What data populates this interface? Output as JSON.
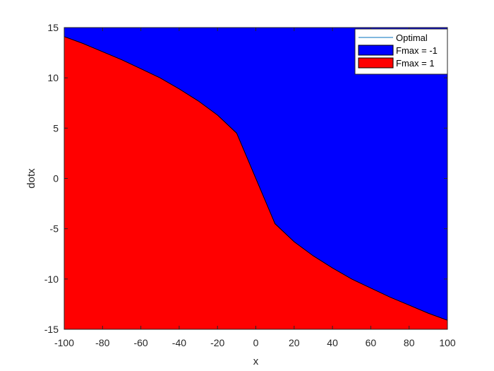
{
  "chart_data": {
    "type": "area",
    "xlabel": "x",
    "ylabel": "dotx",
    "xlim": [
      -100,
      100
    ],
    "ylim": [
      -15,
      15
    ],
    "xticks": [
      -100,
      -80,
      -60,
      -40,
      -20,
      0,
      20,
      40,
      60,
      80,
      100
    ],
    "yticks": [
      -15,
      -10,
      -5,
      0,
      5,
      10,
      15
    ],
    "grid": false,
    "legend_position": "top-right",
    "boundary": {
      "x": [
        -100,
        -90,
        -80,
        -70,
        -60,
        -50,
        -40,
        -30,
        -20,
        -10,
        10,
        20,
        30,
        40,
        50,
        60,
        70,
        80,
        90,
        100
      ],
      "y": [
        14.1,
        13.4,
        12.6,
        11.8,
        10.9,
        10.0,
        8.9,
        7.7,
        6.3,
        4.5,
        -4.5,
        -6.3,
        -7.7,
        -8.9,
        -10.0,
        -10.9,
        -11.8,
        -12.6,
        -13.4,
        -14.1
      ]
    },
    "series": [
      {
        "name": "Optimal",
        "kind": "line",
        "color": "#0072BD"
      },
      {
        "name": "Fmax = -1",
        "kind": "region-above",
        "color": "#0000FF"
      },
      {
        "name": "Fmax = 1",
        "kind": "region-below",
        "color": "#FF0000"
      }
    ]
  }
}
